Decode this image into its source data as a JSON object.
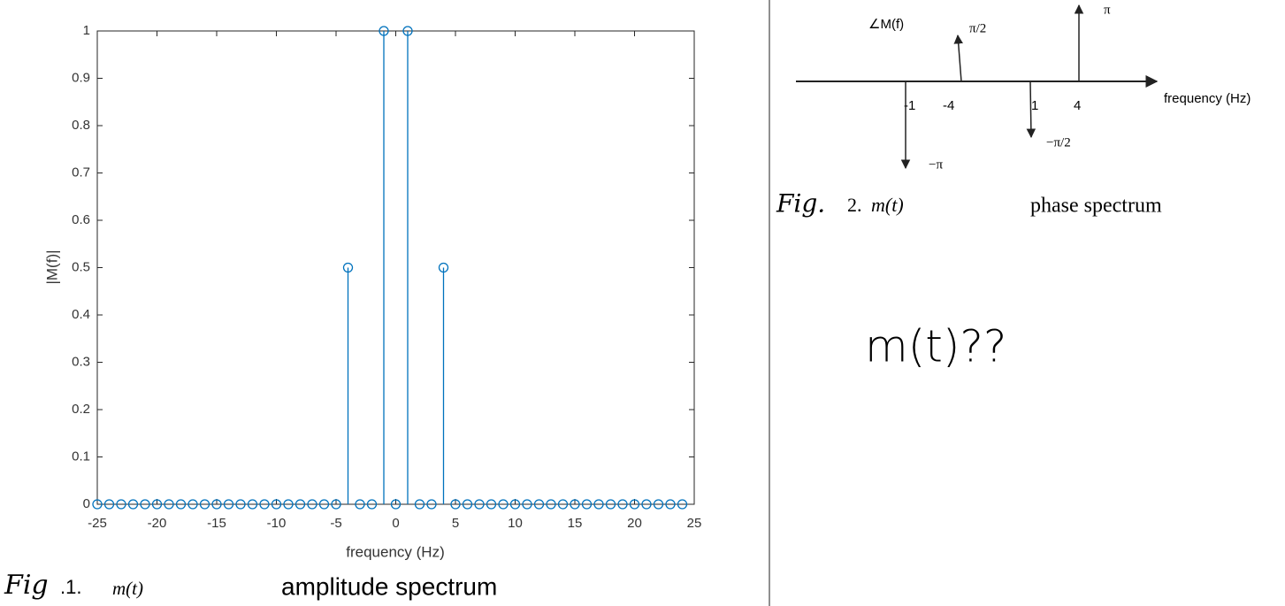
{
  "chart_data": {
    "type": "stem",
    "x": [
      -25,
      -24,
      -23,
      -22,
      -21,
      -20,
      -19,
      -18,
      -17,
      -16,
      -15,
      -14,
      -13,
      -12,
      -11,
      -10,
      -9,
      -8,
      -7,
      -6,
      -5,
      -4,
      -3,
      -2,
      -1,
      0,
      1,
      2,
      3,
      4,
      5,
      6,
      7,
      8,
      9,
      10,
      11,
      12,
      13,
      14,
      15,
      16,
      17,
      18,
      19,
      20,
      21,
      22,
      23,
      24
    ],
    "values": [
      0,
      0,
      0,
      0,
      0,
      0,
      0,
      0,
      0,
      0,
      0,
      0,
      0,
      0,
      0,
      0,
      0,
      0,
      0,
      0,
      0,
      0.5,
      0,
      0,
      1,
      0,
      1,
      0,
      0,
      0.5,
      0,
      0,
      0,
      0,
      0,
      0,
      0,
      0,
      0,
      0,
      0,
      0,
      0,
      0,
      0,
      0,
      0,
      0,
      0,
      0
    ],
    "color": "#0072bd",
    "xlim": [
      -25,
      25
    ],
    "xticks": [
      -25,
      -20,
      -15,
      -10,
      -5,
      0,
      5,
      10,
      15,
      20,
      25
    ],
    "ylim": [
      0,
      1
    ],
    "yticks": [
      0,
      0.1,
      0.2,
      0.3,
      0.4,
      0.5,
      0.6,
      0.7,
      0.8,
      0.9,
      1
    ],
    "xlabel": "frequency (Hz)",
    "ylabel": "|M(f)|"
  },
  "caption1": {
    "fig": "Fig",
    "number": ".1.",
    "math": "m(t)",
    "text": "amplitude spectrum"
  },
  "figure2": {
    "ylabel": "∠M(f)",
    "xlabel": "frequency (Hz)",
    "ticks": [
      "-1",
      "-4",
      "1",
      "4"
    ],
    "arrows": [
      "−π",
      "π/2",
      "−π/2",
      "π"
    ]
  },
  "caption2": {
    "fig": "Fig.",
    "number": "2.",
    "math": "m(t)",
    "text": "phase spectrum"
  },
  "question": "m(t)??"
}
